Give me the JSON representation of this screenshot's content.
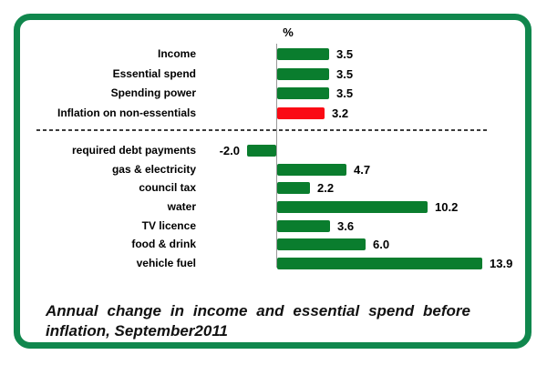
{
  "frame": {
    "border_color": "#10874d"
  },
  "chart_data": {
    "type": "bar",
    "orientation": "horizontal",
    "unit_label": "%",
    "title": "Annual change in income and essential spend before inflation, September2011",
    "baseline_value": 0,
    "grid": false,
    "legend": false,
    "xlim": [
      -2.5,
      14.5
    ],
    "separator_after_label": "Inflation on non-essentials",
    "categories": [
      "Income",
      "Essential spend",
      "Spending power",
      "Inflation on non-essentials",
      "required debt payments",
      "gas & electricity",
      "council tax",
      "water",
      "TV licence",
      "food & drink",
      "vehicle fuel"
    ],
    "values": [
      3.5,
      3.5,
      3.5,
      3.2,
      -2.0,
      4.7,
      2.2,
      10.2,
      3.6,
      6.0,
      13.9
    ],
    "series": [
      {
        "label": "Income",
        "value": 3.5,
        "display": "3.5",
        "color": "green"
      },
      {
        "label": "Essential spend",
        "value": 3.5,
        "display": "3.5",
        "color": "green"
      },
      {
        "label": "Spending power",
        "value": 3.5,
        "display": "3.5",
        "color": "green"
      },
      {
        "label": "Inflation on non-essentials",
        "value": 3.2,
        "display": "3.2",
        "color": "red"
      },
      {
        "label": "required debt payments",
        "value": -2.0,
        "display": "-2.0",
        "color": "green"
      },
      {
        "label": "gas & electricity",
        "value": 4.7,
        "display": "4.7",
        "color": "green"
      },
      {
        "label": "council tax",
        "value": 2.2,
        "display": "2.2",
        "color": "green"
      },
      {
        "label": "water",
        "value": 10.2,
        "display": "10.2",
        "color": "green"
      },
      {
        "label": "TV licence",
        "value": 3.6,
        "display": "3.6",
        "color": "green"
      },
      {
        "label": "food & drink",
        "value": 6.0,
        "display": "6.0",
        "color": "green"
      },
      {
        "label": "vehicle fuel",
        "value": 13.9,
        "display": "13.9",
        "color": "green"
      }
    ],
    "colors": {
      "bar_green": "#0a7d2e",
      "bar_red": "#fa0a14",
      "frame_green": "#10874d",
      "axis_gray": "#999999",
      "separator_dash": "#3c3c3c"
    }
  }
}
